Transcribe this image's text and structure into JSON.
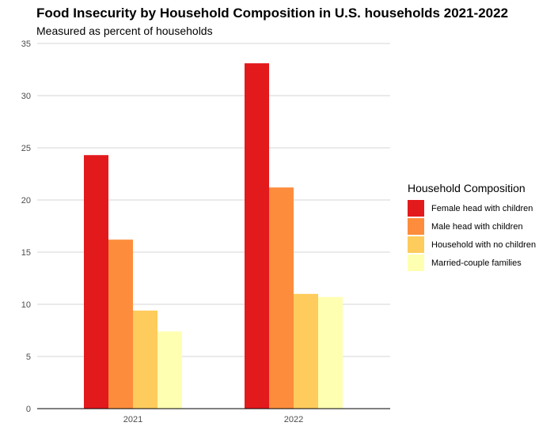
{
  "chart_data": {
    "type": "bar",
    "title": "Food Insecurity by Household Composition in U.S. households 2021-2022",
    "subtitle": "Measured as percent of households",
    "xlabel": "",
    "ylabel": "",
    "categories": [
      "2021",
      "2022"
    ],
    "ylim": [
      0,
      35
    ],
    "yticks": [
      "0",
      "5",
      "10",
      "15",
      "20",
      "25",
      "30",
      "35"
    ],
    "grid": true,
    "legend_title": "Household Composition",
    "legend_position": "right",
    "series": [
      {
        "name": "Female head with children",
        "color": "#e31a1c",
        "values": [
          24.3,
          33.1
        ]
      },
      {
        "name": "Male head with children",
        "color": "#fd8d3c",
        "values": [
          16.2,
          21.2
        ]
      },
      {
        "name": "Household with no children",
        "color": "#fecc5c",
        "values": [
          9.4,
          11.0
        ]
      },
      {
        "name": "Married-couple families",
        "color": "#ffffb2",
        "values": [
          7.4,
          10.7
        ]
      }
    ]
  }
}
